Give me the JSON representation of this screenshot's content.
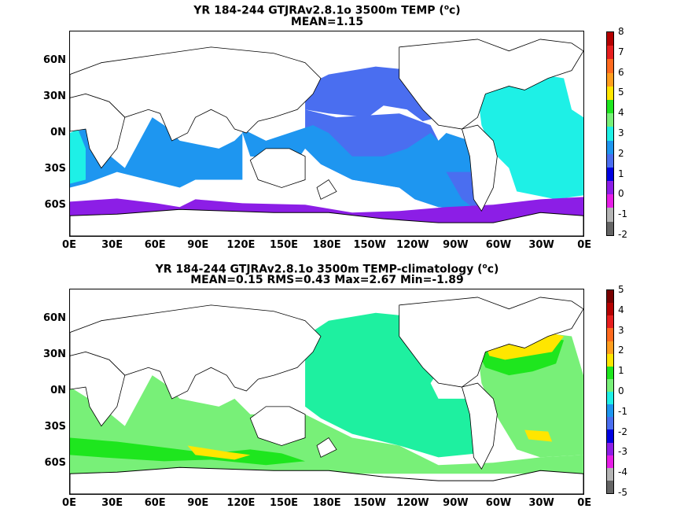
{
  "panels": [
    {
      "title_prefix": "YR 184-244 GTJRAv2.8.1o 3500m TEMP (",
      "title_sup": "o",
      "title_suffix": "c)",
      "subtitle": "MEAN=1.15",
      "colorbar_labels": [
        "8",
        "7",
        "6",
        "5",
        "4",
        "3",
        "2",
        "1",
        "0",
        "-1",
        "-2"
      ],
      "colorbar_colors": [
        "#b40000",
        "#e61e1e",
        "#ff6a1e",
        "#ff9e1e",
        "#ffe600",
        "#1ee61e",
        "#78f078",
        "#1ef0e6",
        "#1e96f0",
        "#4a6ef0",
        "#0000e0",
        "#8c1ee6",
        "#e61ee6",
        "#b4b4b4",
        "#646464"
      ],
      "fields": [
        {
          "name": "north-pacific",
          "color": "#4a6ef0",
          "fill": "blue"
        },
        {
          "name": "indian-ocean",
          "color": "#1e96f0",
          "fill": "lightblue"
        },
        {
          "name": "atlantic",
          "color": "#1ef0e6",
          "fill": "cyan"
        },
        {
          "name": "southern-ocean",
          "color": "#8c1ee6",
          "fill": "purple"
        }
      ]
    },
    {
      "title_prefix": "YR 184-244 GTJRAv2.8.1o 3500m TEMP-climatology (",
      "title_sup": "o",
      "title_suffix": "c)",
      "subtitle": "MEAN=0.15   RMS=0.43   Max=2.67   Min=-1.89",
      "colorbar_labels": [
        "5",
        "4",
        "3",
        "2",
        "1",
        "0",
        "-1",
        "-2",
        "-3",
        "-4",
        "-5"
      ],
      "colorbar_colors": [
        "#780000",
        "#b40000",
        "#e61e1e",
        "#ff6a1e",
        "#ff9e1e",
        "#ffe600",
        "#1ee61e",
        "#78f078",
        "#1ef0e6",
        "#1e96f0",
        "#4a6ef0",
        "#0000e0",
        "#8c1ee6",
        "#e61ee6",
        "#b4b4b4",
        "#646464"
      ],
      "fields": [
        {
          "name": "pacific",
          "color": "#1ef0a0"
        },
        {
          "name": "indian-atlantic",
          "color": "#78f078"
        },
        {
          "name": "north-atlantic",
          "color": "#1ee61e"
        },
        {
          "name": "warm-anomaly",
          "color": "#ffe600"
        }
      ]
    }
  ],
  "lat_labels": [
    "60N",
    "30N",
    "0N",
    "30S",
    "60S"
  ],
  "lon_labels": [
    "0E",
    "30E",
    "60E",
    "90E",
    "120E",
    "150E",
    "180E",
    "150W",
    "120W",
    "90W",
    "60W",
    "30W",
    "0E"
  ]
}
